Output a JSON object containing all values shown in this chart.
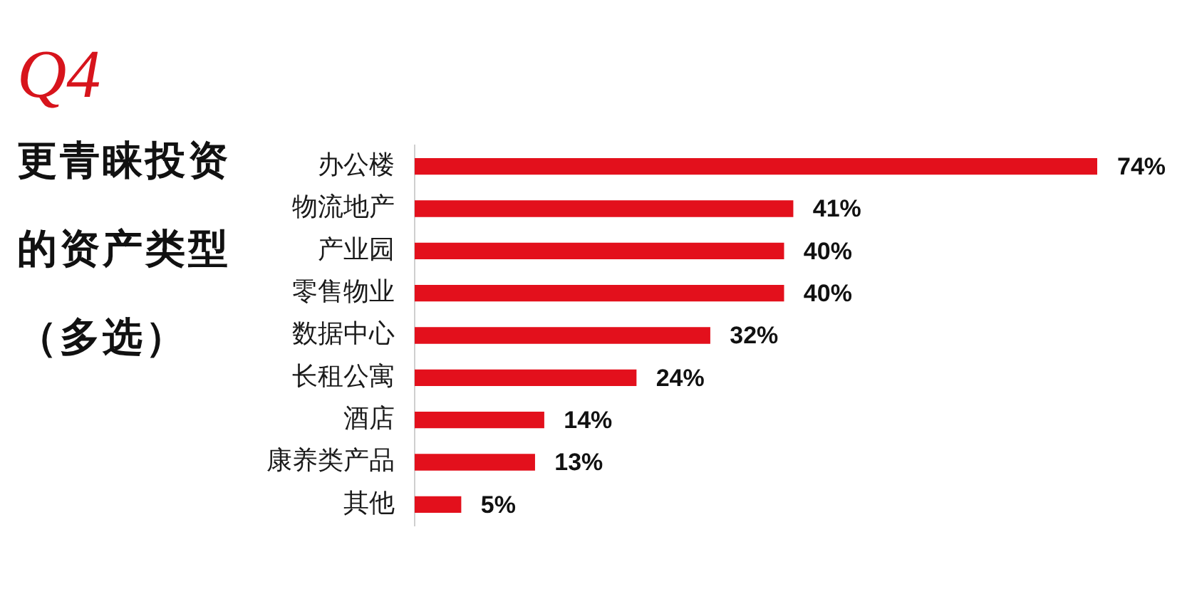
{
  "chart_data": {
    "type": "bar",
    "orientation": "horizontal",
    "title": "Q4",
    "subtitle": "更青睐投资的资产类型（多选）",
    "categories": [
      "办公楼",
      "物流地产",
      "产业园",
      "零售物业",
      "数据中心",
      "长租公寓",
      "酒店",
      "康养类产品",
      "其他"
    ],
    "values": [
      74,
      41,
      40,
      40,
      32,
      24,
      14,
      13,
      5
    ],
    "value_labels": [
      "74%",
      "41%",
      "40%",
      "40%",
      "32%",
      "24%",
      "14%",
      "13%",
      "5%"
    ],
    "color": "#e3101c"
  }
}
